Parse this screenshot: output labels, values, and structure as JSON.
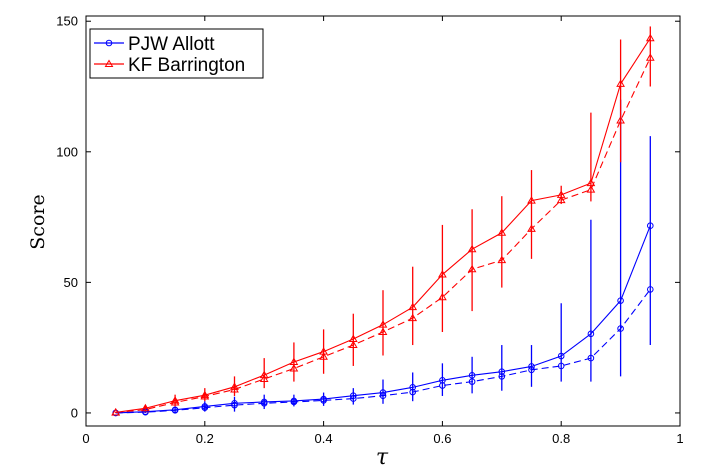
{
  "chart_data": {
    "type": "line",
    "title": "",
    "xlabel": "τ",
    "ylabel": "Score",
    "xlim": [
      0,
      1
    ],
    "ylim": [
      -5,
      152
    ],
    "xticks": [
      0,
      0.2,
      0.4,
      0.6,
      0.8,
      1
    ],
    "xtick_labels": [
      "0",
      "0.2",
      "0.4",
      "0.6",
      "0.8",
      "1"
    ],
    "yticks": [
      0,
      50,
      100,
      150
    ],
    "ytick_labels": [
      "0",
      "50",
      "100",
      "150"
    ],
    "grid": false,
    "legend_position": "top-left",
    "x": [
      0.05,
      0.1,
      0.15,
      0.2,
      0.25,
      0.3,
      0.35,
      0.4,
      0.45,
      0.5,
      0.55,
      0.6,
      0.65,
      0.7,
      0.75,
      0.8,
      0.85,
      0.9,
      0.95
    ],
    "series": [
      {
        "name": "PJW Allott",
        "color": "#0000ff",
        "marker": "circle",
        "line_style": "solid",
        "values": [
          0,
          0.5,
          1.2,
          2.5,
          3.7,
          4.2,
          4.6,
          5.3,
          6.6,
          7.8,
          9.8,
          12.5,
          14.4,
          15.8,
          17.8,
          21.8,
          30.3,
          43.0,
          71.7
        ],
        "error_low": [
          0,
          0,
          0,
          0.5,
          0.5,
          1.5,
          2.5,
          2.7,
          3.2,
          3.5,
          4.5,
          6.5,
          7.5,
          8.5,
          10,
          12,
          12,
          14,
          26
        ],
        "error_high": [
          0,
          1.2,
          2.3,
          4.5,
          6.2,
          7,
          7,
          7.8,
          9.5,
          12.8,
          15.5,
          19,
          21.5,
          26,
          26,
          42,
          74,
          120,
          106
        ]
      },
      {
        "name": "",
        "color": "#0000ff",
        "marker": "circle",
        "line_style": "dashed",
        "values": [
          0,
          0.3,
          1.0,
          2.0,
          3.0,
          3.7,
          4.2,
          4.8,
          5.5,
          6.6,
          8.0,
          10.5,
          12.0,
          14.0,
          16.5,
          18.0,
          21.0,
          32.3,
          47.3
        ]
      },
      {
        "name": "KF Barrington",
        "color": "#ff0000",
        "marker": "triangle",
        "line_style": "solid",
        "values": [
          0.2,
          1.8,
          4.7,
          6.8,
          10.0,
          14.5,
          19.5,
          23.5,
          28.3,
          33.8,
          40.5,
          53.0,
          62.7,
          69.0,
          81.3,
          83.5,
          88.0,
          126.0,
          143.5
        ],
        "error_low": [
          0,
          0.5,
          2.5,
          4.5,
          6.5,
          9.5,
          12,
          15,
          18,
          22,
          26,
          31,
          39,
          48,
          59,
          80,
          81,
          96,
          125
        ],
        "error_high": [
          0.5,
          3,
          7,
          9.5,
          14,
          21,
          27,
          32,
          38,
          47,
          56,
          72,
          78,
          83,
          93,
          87,
          115,
          143,
          148
        ]
      },
      {
        "name": "",
        "color": "#ff0000",
        "marker": "triangle",
        "line_style": "dashed",
        "values": [
          0.1,
          1.3,
          4.0,
          6.3,
          9.0,
          13.0,
          17.0,
          21.5,
          26.0,
          31.0,
          36.3,
          44.3,
          55.0,
          58.5,
          70.5,
          81.5,
          85.5,
          112.0,
          136.0
        ]
      }
    ]
  }
}
